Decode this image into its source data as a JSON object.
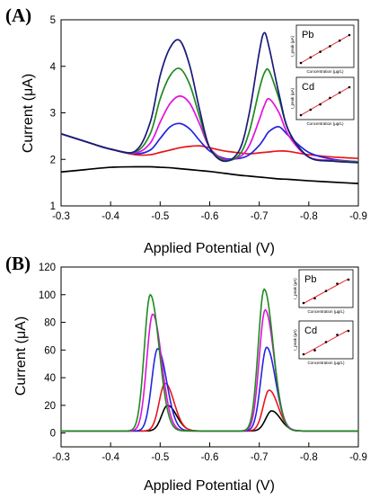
{
  "figure": {
    "panels": [
      {
        "id": "A",
        "panel_label": "(A)",
        "xlabel": "Applied Potential (V)",
        "ylabel": "Current (μA)"
      },
      {
        "id": "B",
        "panel_label": "(B)",
        "xlabel": "Applied Potential (V)",
        "ylabel": "Current (μA)"
      }
    ]
  },
  "chart_data": [
    {
      "type": "line",
      "panel": "A",
      "title": "",
      "xlabel": "Applied Potential (V)",
      "ylabel": "Current (μA)",
      "xlim": [
        -0.3,
        -0.9
      ],
      "ylim": [
        1,
        5
      ],
      "x_axis_reversed": true,
      "xticks": [
        -0.3,
        -0.4,
        -0.5,
        -0.6,
        -0.7,
        -0.8,
        -0.9
      ],
      "yticks": [
        1,
        2,
        3,
        4,
        5
      ],
      "x": [
        -0.3,
        -0.35,
        -0.4,
        -0.45,
        -0.48,
        -0.5,
        -0.52,
        -0.54,
        -0.56,
        -0.58,
        -0.6,
        -0.63,
        -0.66,
        -0.68,
        -0.7,
        -0.71,
        -0.72,
        -0.74,
        -0.76,
        -0.8,
        -0.85,
        -0.9
      ],
      "series": [
        {
          "color": "#000000",
          "values": [
            1.73,
            1.78,
            1.83,
            1.84,
            1.84,
            1.83,
            1.82,
            1.8,
            1.78,
            1.76,
            1.74,
            1.7,
            1.66,
            1.64,
            1.62,
            1.61,
            1.6,
            1.58,
            1.57,
            1.54,
            1.51,
            1.48
          ]
        },
        {
          "color": "#e8161b",
          "values": [
            2.55,
            2.38,
            2.22,
            2.1,
            2.1,
            2.15,
            2.2,
            2.25,
            2.28,
            2.29,
            2.25,
            2.18,
            2.14,
            2.12,
            2.14,
            2.15,
            2.16,
            2.18,
            2.17,
            2.1,
            2.05,
            2.02
          ]
        },
        {
          "color": "#2323e0",
          "values": [
            2.55,
            2.38,
            2.22,
            2.12,
            2.2,
            2.45,
            2.7,
            2.77,
            2.65,
            2.4,
            2.18,
            2.02,
            2.02,
            2.1,
            2.3,
            2.45,
            2.6,
            2.7,
            2.5,
            2.15,
            2.0,
            1.95
          ]
        },
        {
          "color": "#e010e0",
          "values": [
            2.55,
            2.38,
            2.22,
            2.14,
            2.35,
            2.8,
            3.2,
            3.36,
            3.2,
            2.75,
            2.25,
            2.0,
            2.05,
            2.3,
            2.85,
            3.15,
            3.3,
            3.0,
            2.5,
            2.05,
            1.98,
            1.95
          ]
        },
        {
          "color": "#1f8a1f",
          "values": [
            2.55,
            2.38,
            2.22,
            2.16,
            2.55,
            3.3,
            3.8,
            3.95,
            3.6,
            2.9,
            2.25,
            1.98,
            2.1,
            2.6,
            3.5,
            3.85,
            3.9,
            3.3,
            2.6,
            2.05,
            1.97,
            1.95
          ]
        },
        {
          "color": "#1a1a7a",
          "values": [
            2.55,
            2.38,
            2.22,
            2.18,
            2.8,
            3.8,
            4.4,
            4.55,
            4.0,
            3.05,
            2.25,
            1.96,
            2.2,
            3.0,
            4.3,
            4.72,
            4.4,
            3.4,
            2.6,
            2.05,
            1.96,
            1.93
          ]
        }
      ],
      "insets": [
        {
          "label": "Pb",
          "xlabel": "Concentration (µg/L)",
          "ylabel": "I_peak (µA)",
          "x": [
            0,
            1,
            2,
            3,
            4,
            5
          ],
          "y": [
            0.6,
            1.2,
            1.8,
            2.4,
            3.0,
            3.6
          ]
        },
        {
          "label": "Cd",
          "xlabel": "Concentration (µg/L)",
          "ylabel": "I_peak (µA)",
          "x": [
            0,
            1,
            2,
            3,
            4,
            5
          ],
          "y": [
            0.5,
            1.0,
            1.5,
            2.1,
            2.6,
            3.1
          ]
        }
      ]
    },
    {
      "type": "line",
      "panel": "B",
      "title": "",
      "xlabel": "Applied Potential (V)",
      "ylabel": "Current (μA)",
      "xlim": [
        -0.3,
        -0.9
      ],
      "ylim": [
        -10,
        120
      ],
      "x_axis_reversed": true,
      "xticks": [
        -0.3,
        -0.4,
        -0.5,
        -0.6,
        -0.7,
        -0.8,
        -0.9
      ],
      "yticks": [
        0,
        20,
        40,
        60,
        80,
        100,
        120
      ],
      "peaks": [
        {
          "series_color": "#000000",
          "pb_center": -0.515,
          "pb_height": 20,
          "cd_center": -0.725,
          "cd_height": 16
        },
        {
          "series_color": "#e8161b",
          "pb_center": -0.51,
          "pb_height": 36,
          "cd_center": -0.72,
          "cd_height": 31
        },
        {
          "series_color": "#2323e0",
          "pb_center": -0.495,
          "pb_height": 61,
          "cd_center": -0.715,
          "cd_height": 62
        },
        {
          "series_color": "#e010e0",
          "pb_center": -0.485,
          "pb_height": 86,
          "cd_center": -0.712,
          "cd_height": 89
        },
        {
          "series_color": "#1f8a1f",
          "pb_center": -0.48,
          "pb_height": 100,
          "cd_center": -0.71,
          "cd_height": 104
        }
      ],
      "baseline": 1.5,
      "insets": [
        {
          "label": "Pb",
          "xlabel": "Concentration (µg/L)",
          "ylabel": "I_peak (µA)",
          "x": [
            1,
            2,
            3,
            4,
            5
          ],
          "y": [
            20,
            36,
            61,
            86,
            100
          ]
        },
        {
          "label": "Cd",
          "xlabel": "Concentration (µg/L)",
          "ylabel": "I_peak (µA)",
          "x": [
            1,
            2,
            3,
            4,
            5
          ],
          "y": [
            16,
            31,
            62,
            89,
            104
          ]
        }
      ]
    }
  ]
}
